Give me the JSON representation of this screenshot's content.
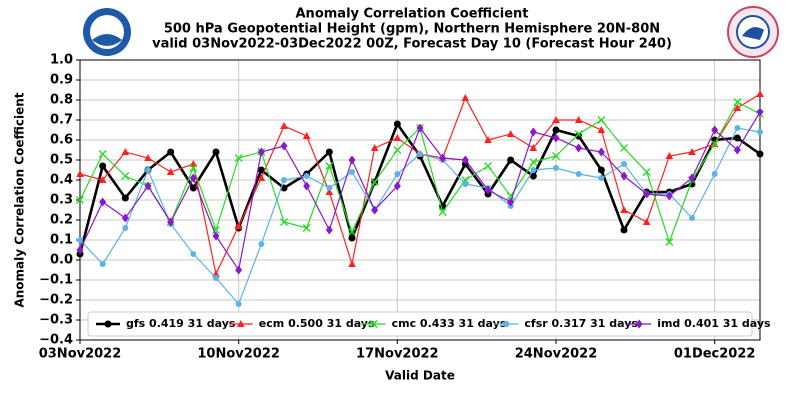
{
  "chart_data": {
    "type": "line",
    "title": [
      "Anomaly Correlation Coefficient",
      "500 hPa Geopotential Height (gpm), Northern Hemisphere 20N-80N",
      "valid 03Nov2022-03Dec2022 00Z, Forecast Day 10 (Forecast Hour 240)"
    ],
    "xlabel": "Valid Date",
    "ylabel": "Anomaly Correlation Coefficient",
    "categories": [
      "03Nov2022",
      null,
      null,
      null,
      null,
      null,
      null,
      "10Nov2022",
      null,
      null,
      null,
      null,
      null,
      null,
      "17Nov2022",
      null,
      null,
      null,
      null,
      null,
      null,
      "24Nov2022",
      null,
      null,
      null,
      null,
      null,
      null,
      "01Dec2022",
      null,
      null
    ],
    "ylim": [
      -0.4,
      1.0
    ],
    "yticks": [
      {
        "value": -0.4,
        "label": "−0.4"
      },
      {
        "value": -0.3,
        "label": "−0.3"
      },
      {
        "value": -0.2,
        "label": "−0.2"
      },
      {
        "value": -0.1,
        "label": "−0.1"
      },
      {
        "value": 0,
        "label": "0.0"
      },
      0.1,
      0.2,
      0.3,
      0.4,
      0.5,
      0.6,
      0.7,
      0.8,
      0.9,
      {
        "value": 1,
        "label": "1.0"
      }
    ],
    "grid": true,
    "legend": "lower center",
    "series": [
      {
        "name": "gfs 0.419 31 days",
        "color": "#000000",
        "marker": "circle",
        "values": [
          0.03,
          0.47,
          0.31,
          0.45,
          0.54,
          0.36,
          0.54,
          0.16,
          0.45,
          0.36,
          0.43,
          0.54,
          0.11,
          0.39,
          0.68,
          0.52,
          0.27,
          0.48,
          0.33,
          0.5,
          0.42,
          0.65,
          0.62,
          0.45,
          0.15,
          0.34,
          0.34,
          0.38,
          0.6,
          0.61,
          0.53
        ]
      },
      {
        "name": "ecm 0.500 31 days",
        "color": "#ff2020",
        "marker": "triangle",
        "values": [
          0.43,
          0.4,
          0.54,
          0.51,
          0.44,
          0.48,
          -0.07,
          0.17,
          0.41,
          0.67,
          0.62,
          0.34,
          -0.02,
          0.56,
          0.61,
          0.53,
          0.51,
          0.81,
          0.6,
          0.63,
          0.56,
          0.7,
          0.7,
          0.65,
          0.25,
          0.19,
          0.52,
          0.54,
          0.58,
          0.76,
          0.83
        ]
      },
      {
        "name": "cmc 0.433 31 days",
        "color": "#22dd22",
        "marker": "x",
        "values": [
          0.3,
          0.53,
          0.42,
          0.37,
          0.19,
          0.46,
          0.15,
          0.51,
          0.54,
          0.19,
          0.16,
          0.47,
          0.14,
          0.39,
          0.55,
          0.66,
          0.24,
          0.4,
          0.47,
          0.32,
          0.49,
          0.52,
          0.63,
          0.7,
          0.56,
          0.44,
          0.09,
          0.4,
          0.58,
          0.79,
          0.73
        ]
      },
      {
        "name": "cfsr 0.317 31 days",
        "color": "#5ab4e8",
        "marker": "dot",
        "values": [
          0.1,
          -0.02,
          0.16,
          0.45,
          0.18,
          0.03,
          -0.09,
          -0.22,
          0.08,
          0.4,
          0.42,
          0.36,
          0.44,
          0.25,
          0.43,
          0.53,
          0.5,
          0.38,
          0.36,
          0.27,
          0.45,
          0.46,
          0.43,
          0.41,
          0.48,
          0.33,
          0.33,
          0.21,
          0.43,
          0.66,
          0.64
        ]
      },
      {
        "name": "imd 0.401 31 days",
        "color": "#8a18cc",
        "marker": "diamond",
        "values": [
          0.05,
          0.29,
          0.21,
          0.37,
          0.19,
          0.41,
          0.12,
          -0.05,
          0.54,
          0.57,
          0.37,
          0.15,
          0.5,
          0.25,
          0.37,
          0.66,
          0.51,
          0.5,
          0.35,
          0.29,
          0.64,
          0.61,
          0.56,
          0.54,
          0.42,
          0.33,
          0.32,
          0.41,
          0.65,
          0.55,
          0.74
        ]
      }
    ]
  }
}
